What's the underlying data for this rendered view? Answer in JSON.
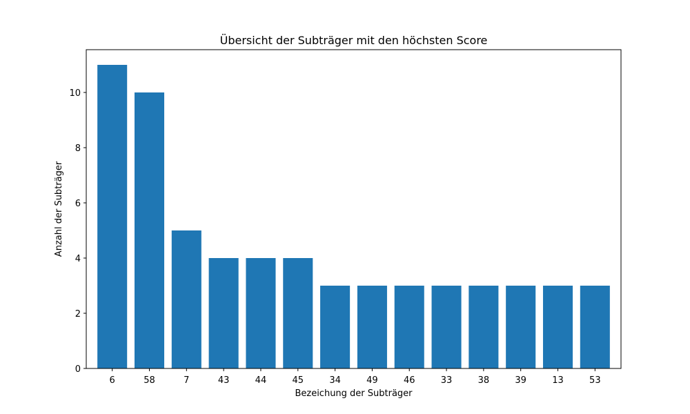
{
  "chart_data": {
    "type": "bar",
    "title": "Übersicht der Subträger mit den höchsten Score",
    "xlabel": "Bezeichung der Subträger",
    "ylabel": "Anzahl der Subträger",
    "categories": [
      "6",
      "58",
      "7",
      "43",
      "44",
      "45",
      "34",
      "49",
      "46",
      "33",
      "38",
      "39",
      "13",
      "53"
    ],
    "values": [
      11,
      10,
      5,
      4,
      4,
      4,
      3,
      3,
      3,
      3,
      3,
      3,
      3,
      3
    ],
    "ylim": [
      0,
      11.55
    ],
    "yticks": [
      0,
      2,
      4,
      6,
      8,
      10
    ],
    "grid": false,
    "legend": "none",
    "bar_color": "#1f77b4"
  }
}
